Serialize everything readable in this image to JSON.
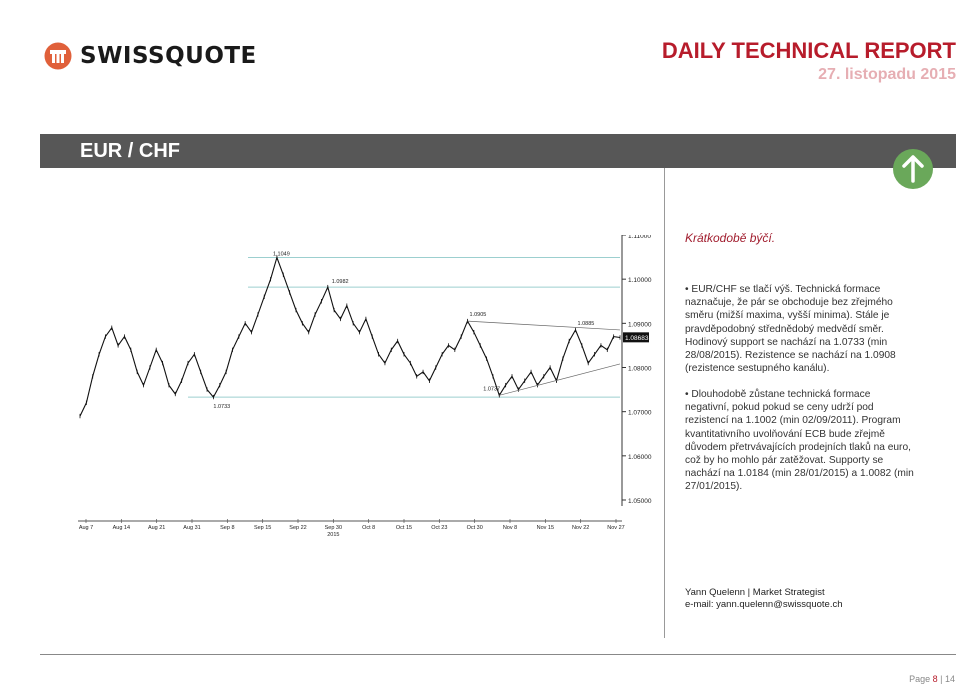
{
  "header": {
    "brand": "SWISSQUOTE",
    "report_title": "DAILY TECHNICAL REPORT",
    "date": "27. listopadu 2015"
  },
  "banner": {
    "pair": "EUR / CHF"
  },
  "signal": {
    "icon": "arrow-up-icon",
    "color": "#6aa85a"
  },
  "analysis": {
    "short_term": "Krátkodobě býčí.",
    "paragraph1": "• EUR/CHF se tlačí výš. Technická formace naznačuje, že pár se obchoduje bez zřejmého směru (mižší maxima, vyšší minima). Stále je pravděpodobný střednědobý medvědí směr. Hodinový support se nachází na 1.0733 (min 28/08/2015). Rezistence se nachází na 1.0908 (rezistence sestupného kanálu).",
    "paragraph2": "• Dlouhodobě zůstane technická formace negativní, pokud pokud se ceny udrží pod rezistencí na 1.1002 (min 02/09/2011). Program kvantitativního uvolňování ECB bude zřejmě důvodem přetrvávajících prodejních tlaků na euro, což by ho mohlo pár zatěžovat. Supporty se nachází na 1.0184 (min 28/01/2015) a 1.0082 (min 27/01/2015)."
  },
  "author": {
    "name": "Yann Quelenn | Market Strategist",
    "email": "e-mail: yann.quelenn@swissquote.ch"
  },
  "footer": {
    "page_label": "Page",
    "page": "8",
    "sep": " | ",
    "total": "14"
  },
  "colors": {
    "brand_red": "#b71c2b",
    "banner_gray": "#575757",
    "accent_green": "#6aa85a"
  },
  "chart_data": {
    "type": "line",
    "ylim": [
      1.05,
      1.11
    ],
    "y_ticks": [
      "1.11000",
      "1.10000",
      "1.09000",
      "1.08000",
      "1.07000",
      "1.06000",
      "1.05000"
    ],
    "x_ticks": [
      "Aug 7",
      "Aug 14",
      "Aug 21",
      "Aug 31",
      "Sep 8",
      "Sep 15",
      "Sep 22",
      "Sep 30",
      "Oct 8",
      "Oct 15",
      "Oct 23",
      "Oct 30",
      "Nov 8",
      "Nov 15",
      "Nov 22",
      "Nov 27"
    ],
    "x_year_label": "2015",
    "last_price": "1.08683",
    "horizontal_levels": [
      1.1049,
      1.0982,
      1.0733
    ],
    "annotations": [
      "1.1049",
      "1.0982",
      "1.0905",
      "1.0885",
      "1.0733",
      "1.0737"
    ],
    "series": [
      {
        "values": [
          1.069,
          1.072,
          1.078,
          1.083,
          1.087,
          1.089,
          1.085,
          1.087,
          1.084,
          1.079,
          1.076,
          1.08,
          1.084,
          1.081,
          1.076,
          1.074,
          1.077,
          1.081,
          1.083,
          1.079,
          1.075,
          1.0733,
          1.076,
          1.079,
          1.084,
          1.087,
          1.09,
          1.088,
          1.092,
          1.096,
          1.1,
          1.1049,
          1.101,
          1.097,
          1.093,
          1.09,
          1.088,
          1.092,
          1.095,
          1.0982,
          1.093,
          1.091,
          1.094,
          1.09,
          1.088,
          1.091,
          1.087,
          1.083,
          1.081,
          1.084,
          1.086,
          1.083,
          1.081,
          1.078,
          1.079,
          1.077,
          1.08,
          1.083,
          1.085,
          1.084,
          1.087,
          1.0905,
          1.088,
          1.085,
          1.082,
          1.078,
          1.0737,
          1.076,
          1.078,
          1.075,
          1.077,
          1.079,
          1.076,
          1.078,
          1.08,
          1.077,
          1.082,
          1.086,
          1.0885,
          1.085,
          1.081,
          1.083,
          1.085,
          1.084,
          1.087,
          1.0868
        ]
      }
    ]
  }
}
